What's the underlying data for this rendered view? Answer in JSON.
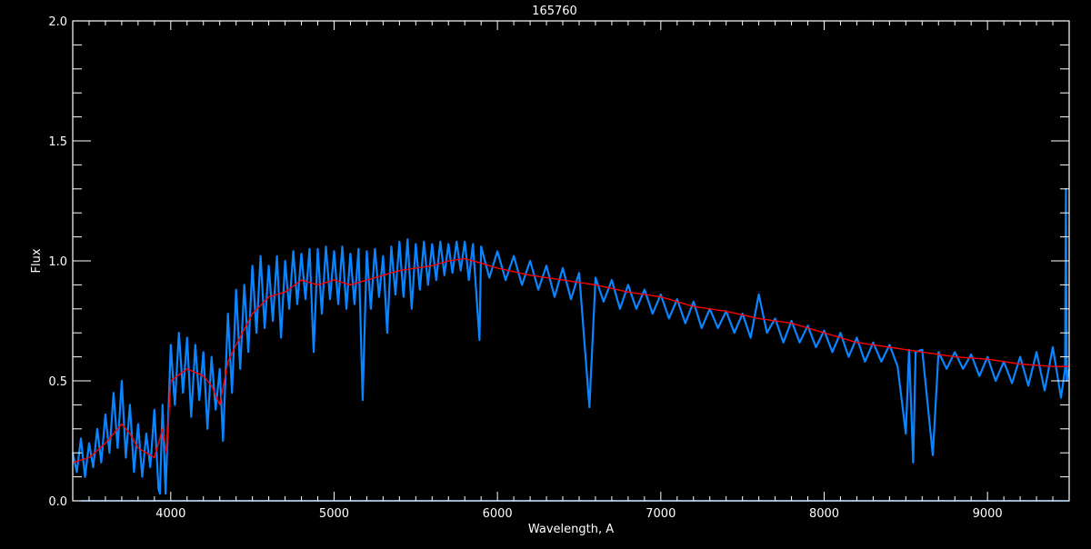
{
  "chart_data": {
    "type": "line",
    "title": "165760",
    "xlabel": "Wavelength, A",
    "ylabel": "Flux",
    "xlim": [
      3400,
      9500
    ],
    "ylim": [
      0,
      2.0
    ],
    "x_ticks": [
      4000,
      5000,
      6000,
      7000,
      8000,
      9000
    ],
    "y_ticks": [
      "0.0",
      "0.5",
      "1.0",
      "1.5",
      "2.0"
    ],
    "grid": false,
    "background": "#000000",
    "axis_color": "#ffffff",
    "series": [
      {
        "color": "#0a84ff",
        "points": [
          [
            3400,
            0.2
          ],
          [
            3425,
            0.12
          ],
          [
            3450,
            0.26
          ],
          [
            3475,
            0.1
          ],
          [
            3500,
            0.24
          ],
          [
            3525,
            0.14
          ],
          [
            3550,
            0.3
          ],
          [
            3575,
            0.16
          ],
          [
            3600,
            0.36
          ],
          [
            3625,
            0.2
          ],
          [
            3650,
            0.45
          ],
          [
            3675,
            0.22
          ],
          [
            3700,
            0.5
          ],
          [
            3725,
            0.18
          ],
          [
            3750,
            0.4
          ],
          [
            3775,
            0.12
          ],
          [
            3800,
            0.32
          ],
          [
            3825,
            0.1
          ],
          [
            3850,
            0.28
          ],
          [
            3875,
            0.14
          ],
          [
            3900,
            0.38
          ],
          [
            3925,
            0.05
          ],
          [
            3934,
            0.03
          ],
          [
            3950,
            0.4
          ],
          [
            3968,
            0.03
          ],
          [
            3985,
            0.35
          ],
          [
            4000,
            0.65
          ],
          [
            4025,
            0.4
          ],
          [
            4050,
            0.7
          ],
          [
            4075,
            0.45
          ],
          [
            4100,
            0.68
          ],
          [
            4125,
            0.35
          ],
          [
            4150,
            0.65
          ],
          [
            4175,
            0.42
          ],
          [
            4200,
            0.62
          ],
          [
            4225,
            0.3
          ],
          [
            4250,
            0.6
          ],
          [
            4275,
            0.38
          ],
          [
            4300,
            0.55
          ],
          [
            4320,
            0.25
          ],
          [
            4350,
            0.78
          ],
          [
            4375,
            0.45
          ],
          [
            4400,
            0.88
          ],
          [
            4425,
            0.55
          ],
          [
            4450,
            0.9
          ],
          [
            4475,
            0.62
          ],
          [
            4500,
            0.98
          ],
          [
            4525,
            0.7
          ],
          [
            4550,
            1.02
          ],
          [
            4575,
            0.72
          ],
          [
            4600,
            0.98
          ],
          [
            4625,
            0.75
          ],
          [
            4650,
            1.02
          ],
          [
            4675,
            0.68
          ],
          [
            4700,
            1.0
          ],
          [
            4725,
            0.8
          ],
          [
            4750,
            1.04
          ],
          [
            4775,
            0.82
          ],
          [
            4800,
            1.03
          ],
          [
            4825,
            0.84
          ],
          [
            4850,
            1.05
          ],
          [
            4875,
            0.62
          ],
          [
            4900,
            1.05
          ],
          [
            4925,
            0.78
          ],
          [
            4950,
            1.06
          ],
          [
            4975,
            0.84
          ],
          [
            5000,
            1.04
          ],
          [
            5025,
            0.82
          ],
          [
            5050,
            1.06
          ],
          [
            5075,
            0.8
          ],
          [
            5100,
            1.03
          ],
          [
            5125,
            0.82
          ],
          [
            5150,
            1.05
          ],
          [
            5175,
            0.42
          ],
          [
            5200,
            1.04
          ],
          [
            5225,
            0.8
          ],
          [
            5250,
            1.05
          ],
          [
            5275,
            0.85
          ],
          [
            5300,
            1.02
          ],
          [
            5325,
            0.7
          ],
          [
            5350,
            1.06
          ],
          [
            5375,
            0.86
          ],
          [
            5400,
            1.08
          ],
          [
            5425,
            0.85
          ],
          [
            5450,
            1.09
          ],
          [
            5475,
            0.8
          ],
          [
            5500,
            1.07
          ],
          [
            5525,
            0.88
          ],
          [
            5550,
            1.08
          ],
          [
            5575,
            0.9
          ],
          [
            5600,
            1.07
          ],
          [
            5625,
            0.92
          ],
          [
            5650,
            1.08
          ],
          [
            5675,
            0.94
          ],
          [
            5700,
            1.07
          ],
          [
            5725,
            0.95
          ],
          [
            5750,
            1.08
          ],
          [
            5775,
            0.96
          ],
          [
            5800,
            1.08
          ],
          [
            5825,
            0.92
          ],
          [
            5850,
            1.07
          ],
          [
            5890,
            0.67
          ],
          [
            5900,
            1.06
          ],
          [
            5950,
            0.93
          ],
          [
            6000,
            1.04
          ],
          [
            6050,
            0.92
          ],
          [
            6100,
            1.02
          ],
          [
            6150,
            0.9
          ],
          [
            6200,
            1.0
          ],
          [
            6250,
            0.88
          ],
          [
            6300,
            0.98
          ],
          [
            6350,
            0.85
          ],
          [
            6400,
            0.97
          ],
          [
            6450,
            0.84
          ],
          [
            6500,
            0.95
          ],
          [
            6563,
            0.39
          ],
          [
            6600,
            0.93
          ],
          [
            6650,
            0.83
          ],
          [
            6700,
            0.92
          ],
          [
            6750,
            0.8
          ],
          [
            6800,
            0.9
          ],
          [
            6850,
            0.8
          ],
          [
            6900,
            0.88
          ],
          [
            6950,
            0.78
          ],
          [
            7000,
            0.86
          ],
          [
            7050,
            0.76
          ],
          [
            7100,
            0.84
          ],
          [
            7150,
            0.74
          ],
          [
            7200,
            0.83
          ],
          [
            7250,
            0.72
          ],
          [
            7300,
            0.8
          ],
          [
            7350,
            0.72
          ],
          [
            7400,
            0.79
          ],
          [
            7450,
            0.7
          ],
          [
            7500,
            0.78
          ],
          [
            7550,
            0.68
          ],
          [
            7600,
            0.86
          ],
          [
            7650,
            0.7
          ],
          [
            7700,
            0.76
          ],
          [
            7750,
            0.66
          ],
          [
            7800,
            0.75
          ],
          [
            7850,
            0.66
          ],
          [
            7900,
            0.73
          ],
          [
            7950,
            0.64
          ],
          [
            8000,
            0.71
          ],
          [
            8050,
            0.62
          ],
          [
            8100,
            0.7
          ],
          [
            8150,
            0.6
          ],
          [
            8200,
            0.68
          ],
          [
            8250,
            0.58
          ],
          [
            8300,
            0.66
          ],
          [
            8350,
            0.58
          ],
          [
            8400,
            0.65
          ],
          [
            8450,
            0.56
          ],
          [
            8500,
            0.28
          ],
          [
            8520,
            0.63
          ],
          [
            8545,
            0.16
          ],
          [
            8560,
            0.62
          ],
          [
            8600,
            0.63
          ],
          [
            8665,
            0.19
          ],
          [
            8700,
            0.62
          ],
          [
            8750,
            0.55
          ],
          [
            8800,
            0.62
          ],
          [
            8850,
            0.55
          ],
          [
            8900,
            0.61
          ],
          [
            8950,
            0.52
          ],
          [
            9000,
            0.6
          ],
          [
            9050,
            0.5
          ],
          [
            9100,
            0.58
          ],
          [
            9150,
            0.49
          ],
          [
            9200,
            0.6
          ],
          [
            9250,
            0.48
          ],
          [
            9300,
            0.62
          ],
          [
            9350,
            0.46
          ],
          [
            9400,
            0.64
          ],
          [
            9450,
            0.43
          ],
          [
            9475,
            0.55
          ],
          [
            9480,
            1.3
          ],
          [
            9485,
            0.5
          ],
          [
            9500,
            0.55
          ]
        ]
      },
      {
        "color": "#ff0000",
        "points": [
          [
            3400,
            0.16
          ],
          [
            3500,
            0.18
          ],
          [
            3600,
            0.24
          ],
          [
            3700,
            0.32
          ],
          [
            3750,
            0.28
          ],
          [
            3800,
            0.22
          ],
          [
            3850,
            0.2
          ],
          [
            3900,
            0.18
          ],
          [
            3950,
            0.3
          ],
          [
            3975,
            0.2
          ],
          [
            4000,
            0.5
          ],
          [
            4100,
            0.55
          ],
          [
            4200,
            0.52
          ],
          [
            4250,
            0.48
          ],
          [
            4300,
            0.4
          ],
          [
            4350,
            0.58
          ],
          [
            4400,
            0.65
          ],
          [
            4500,
            0.78
          ],
          [
            4600,
            0.85
          ],
          [
            4700,
            0.87
          ],
          [
            4800,
            0.92
          ],
          [
            4900,
            0.9
          ],
          [
            5000,
            0.92
          ],
          [
            5100,
            0.9
          ],
          [
            5200,
            0.92
          ],
          [
            5300,
            0.94
          ],
          [
            5400,
            0.96
          ],
          [
            5500,
            0.97
          ],
          [
            5600,
            0.98
          ],
          [
            5700,
            1.0
          ],
          [
            5800,
            1.01
          ],
          [
            5900,
            0.99
          ],
          [
            6000,
            0.97
          ],
          [
            6200,
            0.94
          ],
          [
            6400,
            0.92
          ],
          [
            6600,
            0.9
          ],
          [
            6800,
            0.87
          ],
          [
            7000,
            0.85
          ],
          [
            7200,
            0.81
          ],
          [
            7400,
            0.79
          ],
          [
            7600,
            0.76
          ],
          [
            7800,
            0.74
          ],
          [
            8000,
            0.7
          ],
          [
            8200,
            0.66
          ],
          [
            8400,
            0.64
          ],
          [
            8600,
            0.62
          ],
          [
            8800,
            0.6
          ],
          [
            9000,
            0.59
          ],
          [
            9200,
            0.57
          ],
          [
            9400,
            0.56
          ],
          [
            9500,
            0.56
          ]
        ]
      },
      {
        "color": "#0a84ff",
        "points": [
          [
            3450,
            0.0
          ],
          [
            9500,
            0.0
          ]
        ]
      }
    ]
  }
}
